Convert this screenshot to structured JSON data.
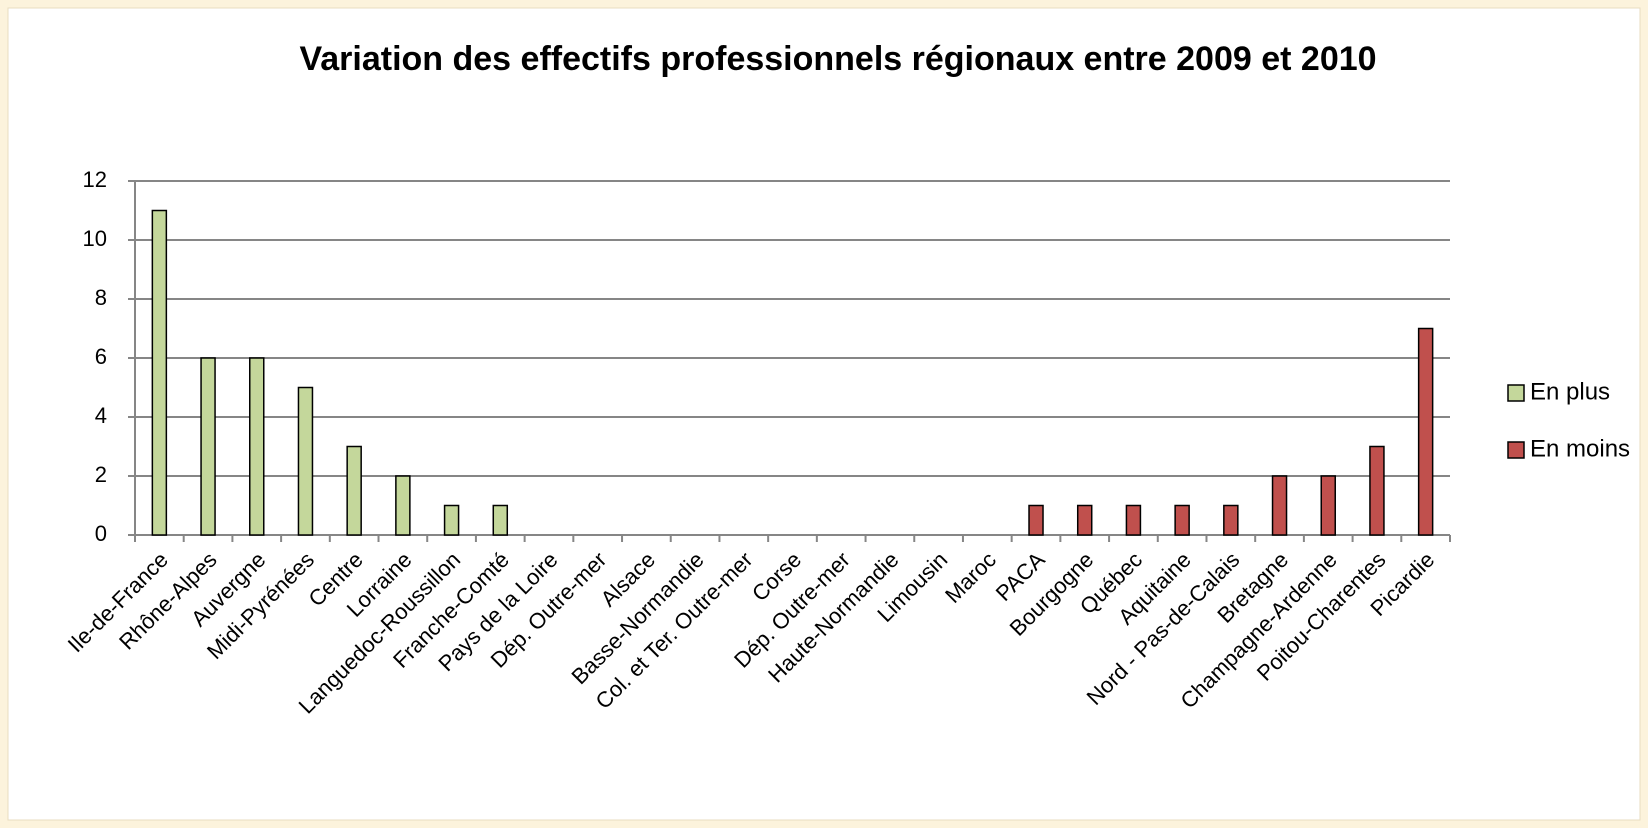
{
  "chart_data": {
    "type": "bar",
    "stacked": true,
    "title": "Variation des effectifs professionnels  régionaux entre 2009 et  2010",
    "categories": [
      "Ile-de-France",
      "Rhône-Alpes",
      "Auvergne",
      "Midi-Pyrénées",
      "Centre",
      "Lorraine",
      "Languedoc-Roussillon",
      "Franche-Comté",
      "Pays de la Loire",
      "Dép. Outre-mer",
      "Alsace",
      "Basse-Normandie",
      "Col. et Ter. Outre-mer",
      "Corse",
      "Dép. Outre-mer",
      "Haute-Normandie",
      "Limousin",
      "Maroc",
      "PACA",
      "Bourgogne",
      "Québec",
      "Aquitaine",
      "Nord - Pas-de-Calais",
      "Bretagne",
      "Champagne-Ardenne",
      "Poitou-Charentes",
      "Picardie"
    ],
    "series": [
      {
        "name": "En plus",
        "color": "#c4d79b",
        "values": [
          11,
          6,
          6,
          5,
          3,
          2,
          1,
          1,
          0,
          0,
          0,
          0,
          0,
          0,
          0,
          0,
          0,
          0,
          null,
          null,
          null,
          null,
          null,
          null,
          null,
          null,
          null
        ]
      },
      {
        "name": "En moins",
        "color": "#c0504d",
        "values": [
          null,
          null,
          null,
          null,
          null,
          null,
          null,
          null,
          0,
          0,
          0,
          0,
          0,
          0,
          0,
          0,
          0,
          0,
          1,
          1,
          1,
          1,
          1,
          2,
          2,
          3,
          7
        ]
      }
    ],
    "ylim": [
      0,
      12
    ],
    "yticks": [
      0,
      2,
      4,
      6,
      8,
      10,
      12
    ],
    "grid": true,
    "legend": "right"
  }
}
